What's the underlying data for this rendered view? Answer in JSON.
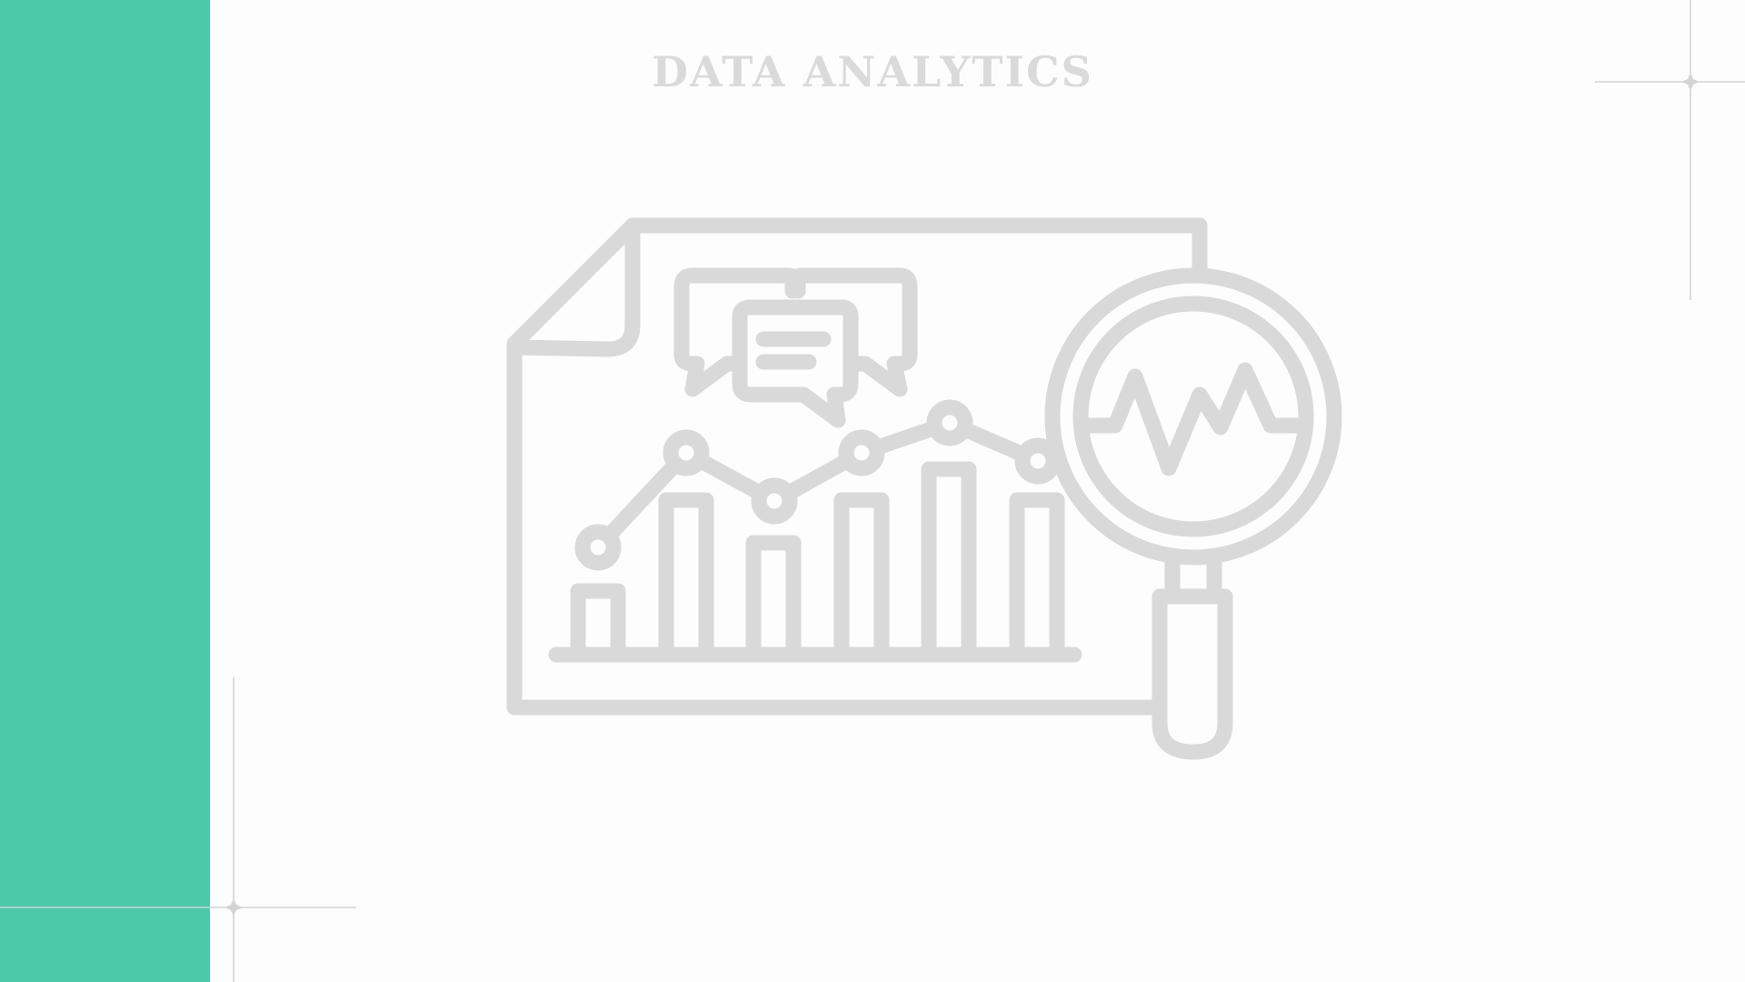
{
  "slide": {
    "title": "DATA ANALYTICS"
  },
  "colors": {
    "accent": "#4bc9a8",
    "background": "#fdfdfd",
    "graphic": "#d9d9d9",
    "title": "#dadada",
    "sparkle_line": "#d4d4d4"
  },
  "icons": {
    "main": "data-analytics-icon",
    "parts": [
      "document-icon",
      "chat-bubbles-icon",
      "bar-chart-icon",
      "line-chart-icon",
      "magnifying-glass-icon",
      "pulse-wave-icon"
    ]
  }
}
